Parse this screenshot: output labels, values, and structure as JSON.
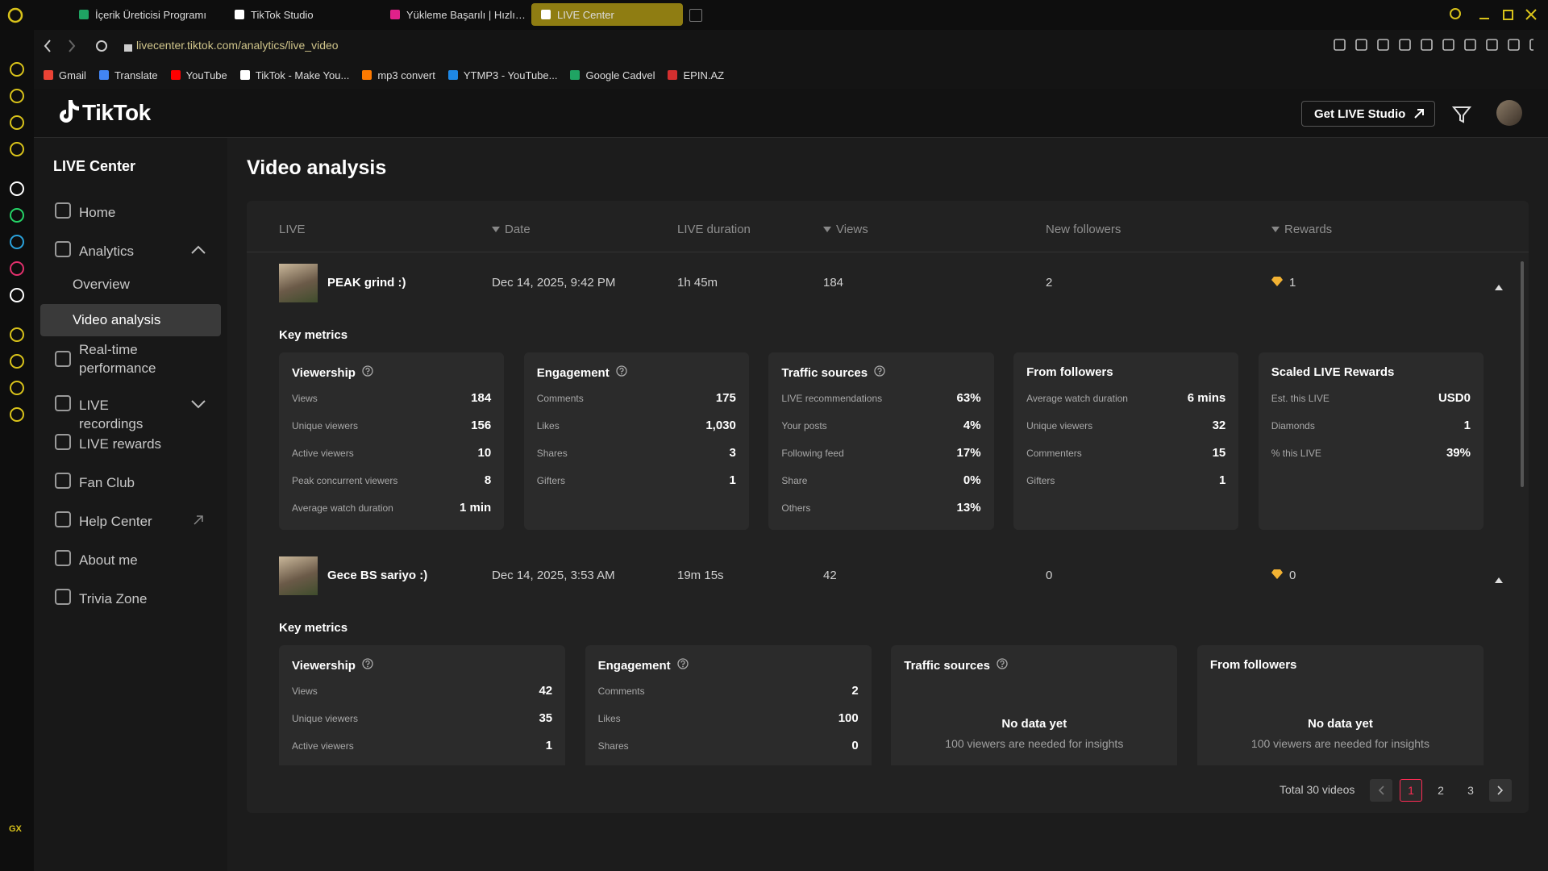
{
  "browser": {
    "tabs": [
      "İçerik Üreticisi Programı",
      "TikTok Studio",
      "Yükleme Başarılı | HızlıRe",
      "LIVE Center"
    ],
    "active_tab": 3,
    "url": "livecenter.tiktok.com/analytics/live_video",
    "bookmarks": [
      "Gmail",
      "Translate",
      "YouTube",
      "TikTok - Make You...",
      "mp3 convert",
      "YTMP3 - YouTube...",
      "Google Cadvel",
      "EPIN.AZ"
    ],
    "sidebar_badge": "GX"
  },
  "header": {
    "logo": "TikTok",
    "button": "Get LIVE Studio"
  },
  "sidebar": {
    "title": "LIVE Center",
    "items": [
      {
        "label": "Home"
      },
      {
        "label": "Analytics",
        "expanded": true,
        "children": [
          {
            "label": "Overview"
          },
          {
            "label": "Video analysis",
            "selected": true
          }
        ]
      },
      {
        "label": "Real-time performance"
      },
      {
        "label": "LIVE recordings",
        "expanded": false
      },
      {
        "label": "LIVE rewards"
      },
      {
        "label": "Fan Club"
      },
      {
        "label": "Help Center",
        "external": true
      },
      {
        "label": "About me"
      },
      {
        "label": "Trivia Zone"
      }
    ]
  },
  "main": {
    "title": "Video analysis",
    "columns": [
      {
        "label": "LIVE"
      },
      {
        "label": "Date",
        "sortable": true
      },
      {
        "label": "LIVE duration"
      },
      {
        "label": "Views",
        "sortable": true
      },
      {
        "label": "New followers"
      },
      {
        "label": "Rewards",
        "sortable": true
      }
    ],
    "rows": [
      {
        "cells": [
          "PEAK grind :)",
          "Dec 14, 2025, 9:42 PM",
          "1h 45m",
          "184",
          "2",
          "1"
        ],
        "metrics_title": "Key metrics",
        "cards": [
          {
            "title": "Viewership",
            "help": true,
            "rows": [
              [
                "Views",
                "184"
              ],
              [
                "Unique viewers",
                "156"
              ],
              [
                "Active viewers",
                "10"
              ],
              [
                "Peak concurrent viewers",
                "8"
              ],
              [
                "Average watch duration",
                "1 min"
              ]
            ]
          },
          {
            "title": "Engagement",
            "help": true,
            "rows": [
              [
                "Comments",
                "175"
              ],
              [
                "Likes",
                "1,030"
              ],
              [
                "Shares",
                "3"
              ],
              [
                "Gifters",
                "1"
              ]
            ]
          },
          {
            "title": "Traffic sources",
            "help": true,
            "rows": [
              [
                "LIVE recommendations",
                "63%"
              ],
              [
                "Your posts",
                "4%"
              ],
              [
                "Following feed",
                "17%"
              ],
              [
                "Share",
                "0%"
              ],
              [
                "Others",
                "13%"
              ]
            ]
          },
          {
            "title": "From followers",
            "rows": [
              [
                "Average watch duration",
                "6 mins"
              ],
              [
                "Unique viewers",
                "32"
              ],
              [
                "Commenters",
                "15"
              ],
              [
                "Gifters",
                "1"
              ]
            ]
          },
          {
            "title": "Scaled LIVE Rewards",
            "rows": [
              [
                "Est. this LIVE",
                "USD0"
              ],
              [
                "Diamonds",
                "1"
              ],
              [
                "% this LIVE",
                "39%"
              ]
            ]
          }
        ]
      },
      {
        "cells": [
          "Gece BS sariyo :)",
          "Dec 14, 2025, 3:53 AM",
          "19m 15s",
          "42",
          "0",
          "0"
        ],
        "metrics_title": "Key metrics",
        "cards": [
          {
            "title": "Viewership",
            "help": true,
            "rows": [
              [
                "Views",
                "42"
              ],
              [
                "Unique viewers",
                "35"
              ],
              [
                "Active viewers",
                "1"
              ]
            ]
          },
          {
            "title": "Engagement",
            "help": true,
            "rows": [
              [
                "Comments",
                "2"
              ],
              [
                "Likes",
                "100"
              ],
              [
                "Shares",
                "0"
              ]
            ]
          },
          {
            "title": "Traffic sources",
            "help": true,
            "empty": [
              "No data yet",
              "100 viewers are needed for insights"
            ]
          },
          {
            "title": "From followers",
            "empty": [
              "No data yet",
              "100 viewers are needed for insights"
            ]
          }
        ]
      }
    ],
    "pagination": {
      "total": "Total 30 videos",
      "pages": [
        "1",
        "2",
        "3"
      ],
      "current": 0
    }
  }
}
